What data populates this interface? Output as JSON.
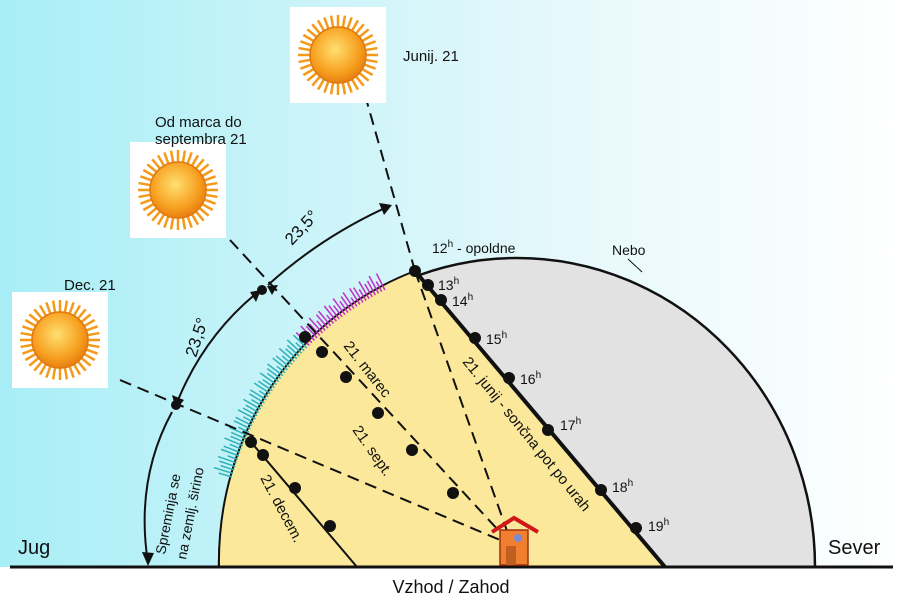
{
  "diagram": {
    "sun_labels": {
      "june": "Junij. 21",
      "equinox_line1": "Od marca do",
      "equinox_line2": "septembra 21",
      "december": "Dec. 21"
    },
    "angles": [
      "23,5°",
      "23,5°"
    ],
    "noon": {
      "number": "12",
      "suffix": "h",
      "text": " - opoldne"
    },
    "sky": "Nebo",
    "hours": [
      {
        "number": "13",
        "suffix": "h"
      },
      {
        "number": "14",
        "suffix": "h"
      },
      {
        "number": "15",
        "suffix": "h"
      },
      {
        "number": "16",
        "suffix": "h"
      },
      {
        "number": "17",
        "suffix": "h"
      },
      {
        "number": "18",
        "suffix": "h"
      },
      {
        "number": "19",
        "suffix": "h"
      }
    ],
    "paths": {
      "june": "21. junij - sončna pot po urah",
      "march": "21. marec",
      "september": "21. sept.",
      "december": "21. decem."
    },
    "latitude_line1": "Spreminja se",
    "latitude_line2": "na zemlj. širino",
    "south": "Jug",
    "north": "Sever",
    "east_west": "Vzhod / Zahod"
  }
}
